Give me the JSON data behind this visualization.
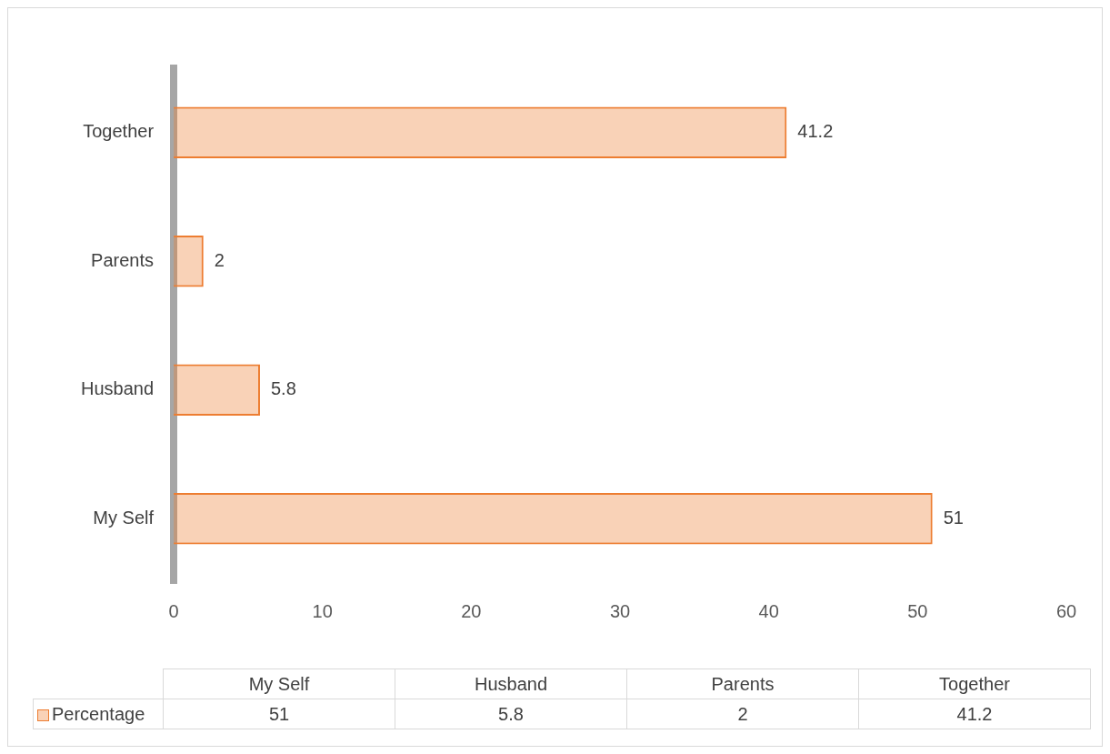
{
  "chart_data": [
    {
      "type": "bar",
      "orientation": "horizontal",
      "categories": [
        "Together",
        "Parents",
        "Husband",
        "My Self"
      ],
      "series": [
        {
          "color": "#ed7d31",
          "values": [
            41.2,
            2,
            5.8,
            51
          ]
        }
      ],
      "xlim": [
        0,
        60
      ],
      "xticks": [
        0,
        10,
        20,
        30,
        40,
        50,
        60
      ],
      "grid": false,
      "data_labels": true
    },
    {
      "type": "other",
      "categories": [
        "My Self",
        "Husband",
        "Parents",
        "Together"
      ],
      "series": [
        {
          "name": "Percentage",
          "color": "#ed7d31",
          "values": [
            51,
            5.8,
            2,
            41.2
          ]
        }
      ],
      "data_labels": true,
      "legend": "left"
    }
  ]
}
